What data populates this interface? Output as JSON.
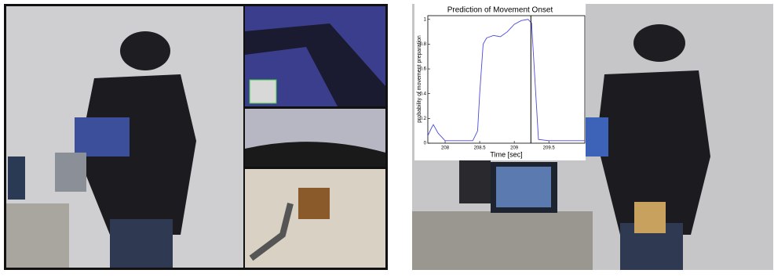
{
  "chart_data": {
    "type": "line",
    "title": "Prediction of Movement Onset",
    "x_label": "Time [sec]",
    "y_label": "probability of movement preparation",
    "x": [
      207.75,
      207.8,
      207.83,
      207.9,
      208.0,
      208.2,
      208.4,
      208.47,
      208.5,
      208.55,
      208.6,
      208.7,
      208.8,
      208.9,
      209.0,
      209.1,
      209.2,
      209.25,
      209.3,
      209.35,
      209.5,
      209.8,
      210.02
    ],
    "series": [
      {
        "color": "#4a4ae0",
        "values": [
          0.06,
          0.12,
          0.15,
          0.08,
          0.02,
          0.02,
          0.02,
          0.1,
          0.4,
          0.8,
          0.85,
          0.87,
          0.86,
          0.9,
          0.96,
          0.99,
          1.0,
          0.97,
          0.5,
          0.03,
          0.02,
          0.02,
          0.02
        ]
      }
    ],
    "vline": 209.24,
    "vline_color": "#000000",
    "xlim": [
      207.75,
      210.02
    ],
    "ylim": [
      0,
      1.03
    ],
    "xticks": [
      208,
      208.5,
      209,
      209.5
    ],
    "yticks": [
      0,
      0.2,
      0.4,
      0.6,
      0.8,
      1
    ]
  }
}
